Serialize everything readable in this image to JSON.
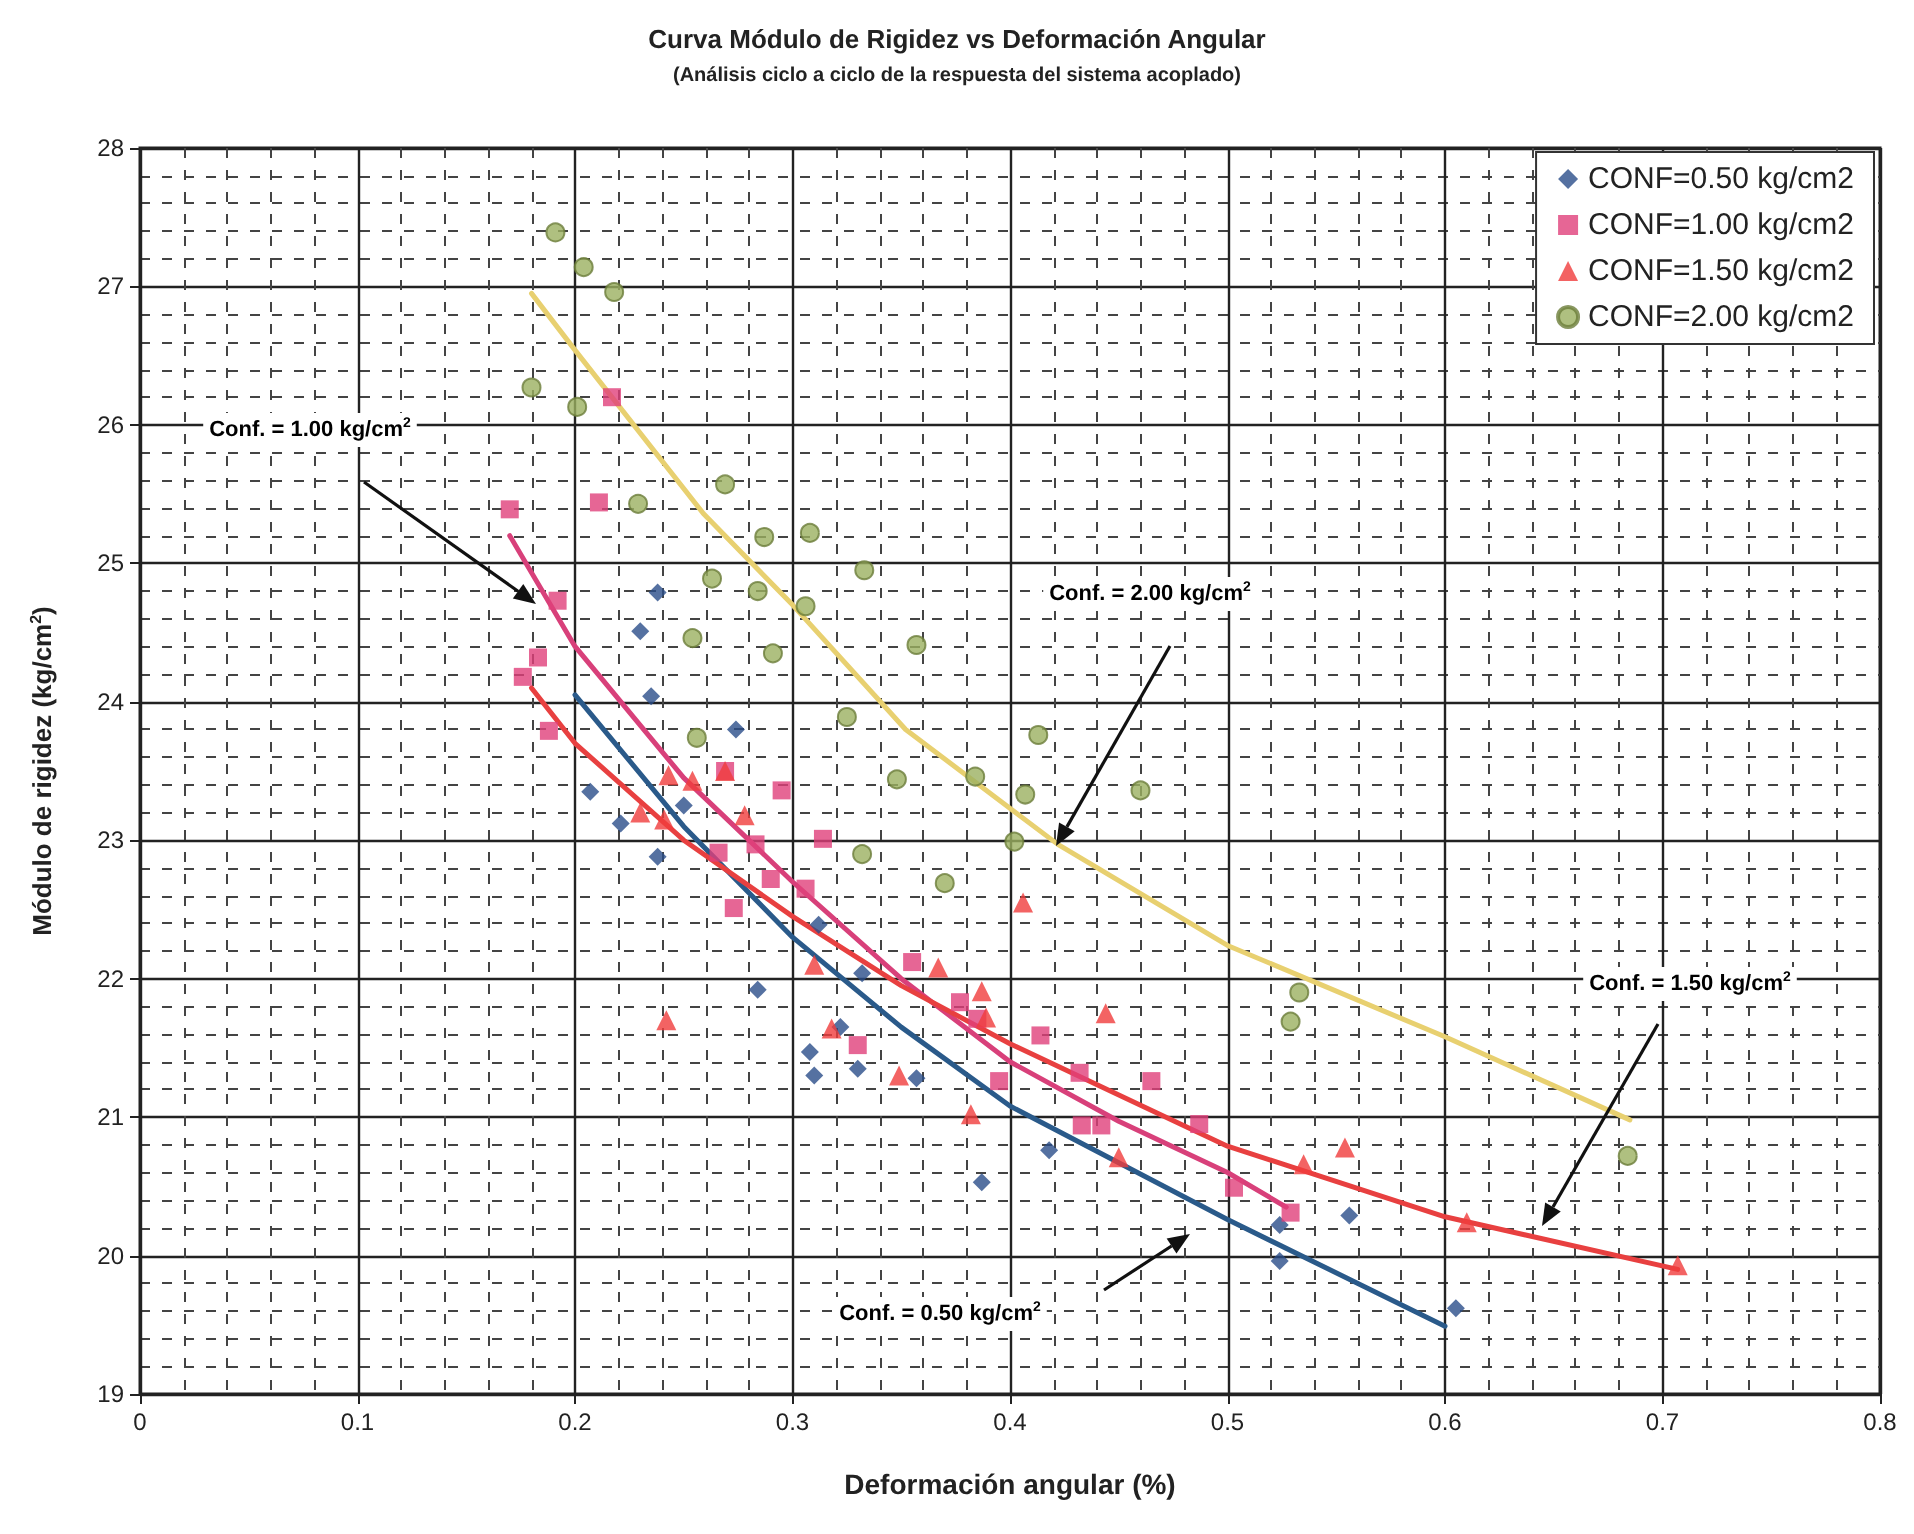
{
  "chart_data": {
    "type": "scatter",
    "title": "Curva Módulo de Rigidez vs Deformación Angular",
    "subtitle": "(Análisis ciclo a ciclo de la respuesta del sistema acoplado)",
    "xlabel": "Deformación angular (%)",
    "ylabel": "Módulo de rigidez (kg/cm$^{2}$)",
    "xlim": [
      0,
      0.8
    ],
    "xticks": [
      0,
      0.1,
      0.2,
      0.3,
      0.4,
      0.5,
      0.6,
      0.7,
      0.8
    ],
    "ylim": [
      19,
      28
    ],
    "yticks": [
      19,
      20,
      21,
      22,
      23,
      24,
      25,
      26,
      27,
      28
    ],
    "grid": true,
    "legend": "top right",
    "series": [
      {
        "name": "CONF=0.50 kg/cm2",
        "marker": "diamond",
        "color": "#2a4e8a",
        "x": [
          0.238,
          0.23,
          0.235,
          0.274,
          0.207,
          0.221,
          0.25,
          0.238,
          0.284,
          0.308,
          0.31,
          0.33,
          0.357,
          0.322,
          0.332,
          0.312,
          0.418,
          0.387,
          0.524,
          0.524,
          0.556,
          0.605
        ],
        "values": [
          24.79,
          24.51,
          24.04,
          23.8,
          23.35,
          23.12,
          23.25,
          22.88,
          21.92,
          21.47,
          21.3,
          21.35,
          21.28,
          21.65,
          22.04,
          22.39,
          20.76,
          20.53,
          20.22,
          19.96,
          20.29,
          19.62
        ]
      },
      {
        "name": "CONF=1.00 kg/cm2",
        "marker": "square",
        "color": "#e0407a",
        "x": [
          0.217,
          0.211,
          0.17,
          0.192,
          0.176,
          0.183,
          0.188,
          0.295,
          0.314,
          0.269,
          0.283,
          0.266,
          0.29,
          0.306,
          0.273,
          0.355,
          0.33,
          0.395,
          0.377,
          0.385,
          0.414,
          0.432,
          0.465,
          0.433,
          0.442,
          0.487,
          0.503,
          0.529
        ],
        "values": [
          26.2,
          25.44,
          25.39,
          24.73,
          24.18,
          24.32,
          23.79,
          23.36,
          23.01,
          23.5,
          22.97,
          22.91,
          22.72,
          22.65,
          22.51,
          22.12,
          21.52,
          21.26,
          21.83,
          21.71,
          21.59,
          21.32,
          21.26,
          20.94,
          20.94,
          20.95,
          20.49,
          20.31
        ]
      },
      {
        "name": "CONF=1.50 kg/cm2",
        "marker": "triangle",
        "color": "#f03c3c",
        "x": [
          0.243,
          0.254,
          0.269,
          0.278,
          0.23,
          0.241,
          0.242,
          0.31,
          0.367,
          0.387,
          0.389,
          0.318,
          0.349,
          0.382,
          0.406,
          0.444,
          0.45,
          0.535,
          0.554,
          0.61,
          0.707
        ],
        "values": [
          23.47,
          23.43,
          23.5,
          23.18,
          23.2,
          23.15,
          21.7,
          22.1,
          22.08,
          21.91,
          21.72,
          21.64,
          21.3,
          21.02,
          22.55,
          21.75,
          20.71,
          20.66,
          20.78,
          20.24,
          19.93
        ]
      },
      {
        "name": "CONF=2.00 kg/cm2",
        "marker": "circle",
        "color": "#9bb060",
        "x": [
          0.191,
          0.204,
          0.218,
          0.18,
          0.201,
          0.229,
          0.269,
          0.287,
          0.308,
          0.333,
          0.263,
          0.284,
          0.306,
          0.254,
          0.291,
          0.325,
          0.256,
          0.357,
          0.413,
          0.348,
          0.384,
          0.407,
          0.46,
          0.402,
          0.332,
          0.37,
          0.533,
          0.529,
          0.684
        ],
        "values": [
          27.39,
          27.14,
          26.96,
          26.27,
          26.13,
          25.43,
          25.57,
          25.19,
          25.22,
          24.95,
          24.89,
          24.8,
          24.69,
          24.46,
          24.35,
          23.89,
          23.74,
          24.41,
          23.76,
          23.44,
          23.46,
          23.33,
          23.36,
          22.99,
          22.9,
          22.69,
          21.9,
          21.69,
          20.72
        ]
      },
      {
        "type": "line",
        "marker": "none",
        "color": "#2a5a8a",
        "x": [
          0.2,
          0.25,
          0.3,
          0.35,
          0.4,
          0.5,
          0.6
        ],
        "values": [
          24.05,
          23.1,
          22.3,
          21.65,
          21.08,
          20.26,
          19.49
        ]
      },
      {
        "type": "line",
        "marker": "none",
        "color": "#d8407a",
        "x": [
          0.17,
          0.2,
          0.25,
          0.3,
          0.35,
          0.4,
          0.45,
          0.5,
          0.527
        ],
        "values": [
          25.2,
          24.4,
          23.45,
          22.7,
          22.0,
          21.4,
          20.97,
          20.6,
          20.35
        ]
      },
      {
        "type": "line",
        "marker": "none",
        "color": "#e84040",
        "x": [
          0.18,
          0.2,
          0.25,
          0.3,
          0.35,
          0.4,
          0.5,
          0.6,
          0.707
        ],
        "values": [
          24.1,
          23.7,
          23.0,
          22.45,
          21.95,
          21.53,
          20.79,
          20.28,
          19.9
        ]
      },
      {
        "type": "line",
        "marker": "none",
        "color": "#e8d070",
        "x": [
          0.18,
          0.2,
          0.259,
          0.3,
          0.352,
          0.422,
          0.5,
          0.6,
          0.685
        ],
        "values": [
          26.95,
          26.54,
          25.36,
          24.7,
          23.8,
          22.97,
          22.24,
          21.58,
          20.98
        ]
      }
    ],
    "annotations": [
      "Conf. = 1.00 kg/cm$^{2}$",
      "Conf. = 2.00 kg/cm$^{2}$",
      "Conf. = 1.50 kg/cm$^{2}$",
      "Conf. = 0.50 kg/cm$^{2}$"
    ]
  }
}
